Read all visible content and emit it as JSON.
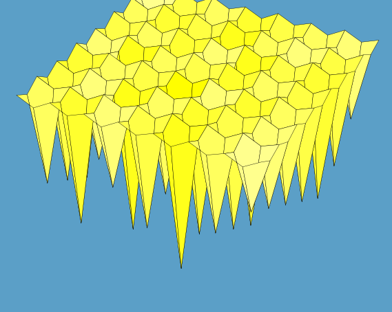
{
  "chart_data": {
    "type": "surface",
    "color": "hot",
    "tick_labels": false,
    "x": [
      -7,
      -6,
      -5,
      -4,
      -3,
      -2,
      -1,
      0,
      1,
      2,
      3,
      4,
      5,
      6,
      7
    ],
    "y": [
      -7,
      -6,
      -5,
      -4,
      -3,
      -2,
      -1,
      0,
      1,
      2,
      3,
      4,
      5,
      6,
      7
    ],
    "xlim": [
      -7,
      7
    ],
    "ylim": [
      -7,
      7
    ],
    "zlim": [
      -10,
      1
    ],
    "z": [
      [
        0.9,
        0.4,
        1.0,
        0.5,
        0.9,
        0.4,
        1.0,
        0.5,
        0.9,
        0.4,
        1.0,
        0.5,
        0.9,
        0.4,
        1.0
      ],
      [
        0.4,
        -5,
        0.5,
        -7,
        0.4,
        -4,
        0.5,
        -6,
        0.4,
        -8,
        0.5,
        -5,
        0.4,
        -3,
        0.5
      ],
      [
        1.0,
        0.5,
        0.9,
        0.4,
        1.0,
        0.5,
        0.9,
        0.4,
        1.0,
        0.5,
        0.9,
        0.4,
        1.0,
        0.5,
        0.9
      ],
      [
        0.4,
        -6,
        0.5,
        -4,
        0.4,
        -8,
        0.5,
        -5,
        0.4,
        -7,
        0.5,
        -6,
        0.4,
        -4,
        0.5
      ],
      [
        0.9,
        0.4,
        1.0,
        0.5,
        0.9,
        0.4,
        1.0,
        0.5,
        0.9,
        0.4,
        1.0,
        0.5,
        0.9,
        0.4,
        1.0
      ],
      [
        0.4,
        -7,
        0.5,
        -5,
        0.4,
        -6,
        0.5,
        -9,
        0.4,
        -4,
        0.5,
        -7,
        0.4,
        -5,
        0.5
      ],
      [
        1.0,
        0.5,
        0.9,
        0.4,
        1.0,
        0.5,
        0.9,
        0.4,
        1.0,
        0.5,
        0.9,
        0.4,
        1.0,
        0.5,
        0.9
      ],
      [
        0.4,
        -4,
        0.5,
        -8,
        0.4,
        -5,
        0.5,
        -6,
        0.4,
        -7,
        0.5,
        -5,
        0.4,
        -6,
        0.5
      ],
      [
        0.9,
        0.4,
        1.0,
        0.5,
        0.9,
        0.4,
        1.0,
        0.5,
        0.9,
        0.4,
        1.0,
        0.5,
        0.9,
        0.4,
        1.0
      ],
      [
        0.4,
        -6,
        0.5,
        -5,
        0.4,
        -7,
        0.5,
        -4,
        0.4,
        -8,
        0.5,
        -6,
        0.4,
        -7,
        0.5
      ],
      [
        1.0,
        0.5,
        0.9,
        0.4,
        1.0,
        0.5,
        0.9,
        0.4,
        1.0,
        0.5,
        0.9,
        0.4,
        1.0,
        0.5,
        0.9
      ],
      [
        0.4,
        -5,
        0.5,
        -7,
        0.4,
        -6,
        0.5,
        -8,
        0.4,
        -5,
        0.5,
        -4,
        0.4,
        -6,
        0.5
      ],
      [
        0.9,
        0.4,
        1.0,
        0.5,
        0.9,
        0.4,
        1.0,
        0.5,
        0.9,
        0.4,
        1.0,
        0.5,
        0.9,
        0.4,
        1.0
      ],
      [
        0.4,
        -3,
        0.5,
        -6,
        0.4,
        -5,
        0.5,
        -7,
        0.4,
        -6,
        0.5,
        -5,
        0.4,
        -4,
        0.5
      ],
      [
        1.0,
        0.5,
        0.9,
        0.4,
        1.0,
        0.5,
        0.9,
        0.4,
        1.0,
        0.5,
        0.9,
        0.4,
        1.0,
        0.5,
        0.9
      ]
    ]
  }
}
